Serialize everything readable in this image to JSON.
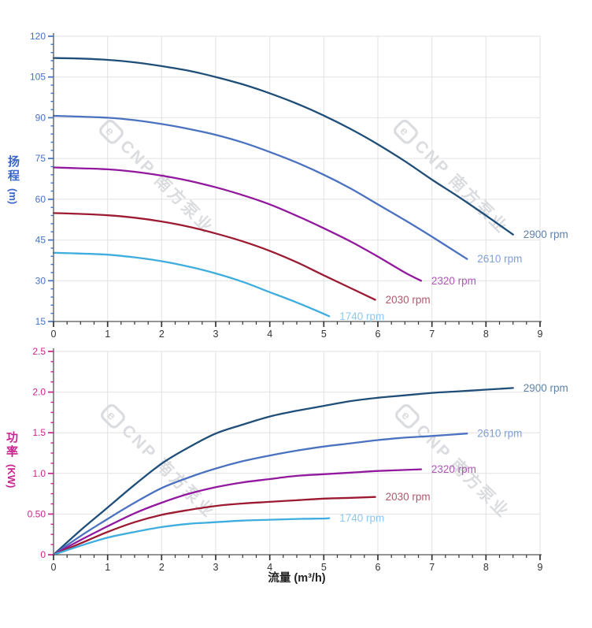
{
  "watermark": {
    "logo": "cnp-logo",
    "logo_letter": "e",
    "text": "CNP 南方泵业",
    "color": "#d7d9dc"
  },
  "x_text_color": "#333333",
  "chart_data": [
    {
      "type": "line",
      "id": "head",
      "title": "",
      "ylabel": "扬程",
      "ylabel_unit": "(m)",
      "xlabel": "",
      "xlim": [
        0,
        9
      ],
      "ylim": [
        15,
        120
      ],
      "x_major": 1,
      "x_minor": 0.25,
      "y_major": 15,
      "y_minor": 3,
      "grid": true,
      "axis_color": "#4472c4",
      "title_color": "#3a66cc",
      "x_tick_labels": [
        {
          "v": 0,
          "label": "0"
        },
        {
          "v": 1,
          "label": "1"
        },
        {
          "v": 2,
          "label": "2"
        },
        {
          "v": 3,
          "label": "3"
        },
        {
          "v": 4,
          "label": "4"
        },
        {
          "v": 5,
          "label": "5"
        },
        {
          "v": 6,
          "label": "6"
        },
        {
          "v": 7,
          "label": "7"
        },
        {
          "v": 8,
          "label": "8"
        },
        {
          "v": 9,
          "label": "9"
        }
      ],
      "y_tick_labels": [
        {
          "v": 15,
          "label": "15"
        },
        {
          "v": 30,
          "label": "30"
        },
        {
          "v": 45,
          "label": "45"
        },
        {
          "v": 60,
          "label": "60"
        },
        {
          "v": 75,
          "label": "75"
        },
        {
          "v": 90,
          "label": "90"
        },
        {
          "v": 105,
          "label": "105"
        },
        {
          "v": 120,
          "label": "120"
        }
      ],
      "series": [
        {
          "name": "2900 rpm",
          "color": "#1f4e79",
          "label_color": "#5f82a8",
          "points": [
            [
              0,
              112
            ],
            [
              0.5,
              111.8
            ],
            [
              1,
              111.3
            ],
            [
              1.5,
              110.4
            ],
            [
              2,
              109
            ],
            [
              2.5,
              107.3
            ],
            [
              3,
              105
            ],
            [
              3.5,
              102.3
            ],
            [
              4,
              99
            ],
            [
              4.5,
              95.2
            ],
            [
              5,
              90.8
            ],
            [
              5.5,
              85.8
            ],
            [
              6,
              80.2
            ],
            [
              6.5,
              74
            ],
            [
              7,
              67.2
            ],
            [
              7.5,
              60.8
            ],
            [
              8,
              54
            ],
            [
              8.5,
              47
            ]
          ]
        },
        {
          "name": "2610 rpm",
          "color": "#4a72c0",
          "label_color": "#7f9fd9",
          "points": [
            [
              0,
              90.7
            ],
            [
              0.5,
              90.4
            ],
            [
              1,
              90
            ],
            [
              1.5,
              89.1
            ],
            [
              2,
              87.7
            ],
            [
              2.5,
              85.9
            ],
            [
              3,
              83.7
            ],
            [
              3.5,
              80.9
            ],
            [
              4,
              77.4
            ],
            [
              4.5,
              73.5
            ],
            [
              5,
              69
            ],
            [
              5.5,
              63.9
            ],
            [
              6,
              58.1
            ],
            [
              6.5,
              52.3
            ],
            [
              7,
              46.2
            ],
            [
              7.65,
              38
            ]
          ]
        },
        {
          "name": "2320 rpm",
          "color": "#92189e",
          "label_color": "#b055b8",
          "points": [
            [
              0,
              71.7
            ],
            [
              0.5,
              71.4
            ],
            [
              1,
              71
            ],
            [
              1.5,
              70.1
            ],
            [
              2,
              68.7
            ],
            [
              2.5,
              66.8
            ],
            [
              3,
              64.4
            ],
            [
              3.5,
              61.5
            ],
            [
              4,
              58.1
            ],
            [
              4.5,
              53.9
            ],
            [
              5,
              49.3
            ],
            [
              5.5,
              44.4
            ],
            [
              6,
              38.9
            ],
            [
              6.5,
              33
            ],
            [
              6.8,
              30
            ]
          ]
        },
        {
          "name": "2030 rpm",
          "color": "#9c1b33",
          "label_color": "#b05a6e",
          "points": [
            [
              0,
              54.9
            ],
            [
              0.5,
              54.6
            ],
            [
              1,
              54.1
            ],
            [
              1.5,
              53.2
            ],
            [
              2,
              51.8
            ],
            [
              2.5,
              49.9
            ],
            [
              3,
              47.4
            ],
            [
              3.5,
              44.5
            ],
            [
              4,
              41
            ],
            [
              4.5,
              36.8
            ],
            [
              5,
              32
            ],
            [
              5.95,
              23
            ]
          ]
        },
        {
          "name": "1740 rpm",
          "color": "#3fadde",
          "label_color": "#8fc7ec",
          "points": [
            [
              0,
              40.3
            ],
            [
              0.5,
              40
            ],
            [
              1,
              39.6
            ],
            [
              1.5,
              38.6
            ],
            [
              2,
              37.2
            ],
            [
              2.5,
              35.2
            ],
            [
              3,
              32.7
            ],
            [
              3.5,
              29.6
            ],
            [
              4,
              25.8
            ],
            [
              4.5,
              22
            ],
            [
              5,
              17.8
            ],
            [
              5.1,
              16.9
            ]
          ]
        }
      ]
    },
    {
      "type": "line",
      "id": "power",
      "title": "",
      "ylabel": "功率",
      "ylabel_unit": "(KW)",
      "xlabel": "流量 (m³/h)",
      "xlim": [
        0,
        9
      ],
      "ylim": [
        0,
        2.5
      ],
      "x_major": 1,
      "x_minor": 0.25,
      "y_major": 0.5,
      "y_minor": 0.125,
      "grid": true,
      "axis_color": "#c9248f",
      "title_color": "#c9248f",
      "x_tick_labels": [
        {
          "v": 0,
          "label": "0"
        },
        {
          "v": 1,
          "label": "1"
        },
        {
          "v": 2,
          "label": "2"
        },
        {
          "v": 3,
          "label": "3"
        },
        {
          "v": 4,
          "label": "4"
        },
        {
          "v": 5,
          "label": "5"
        },
        {
          "v": 6,
          "label": "6"
        },
        {
          "v": 7,
          "label": "7"
        },
        {
          "v": 8,
          "label": "8"
        },
        {
          "v": 9,
          "label": "9"
        }
      ],
      "y_tick_labels": [
        {
          "v": 0,
          "label": "0"
        },
        {
          "v": 0.5,
          "label": "0.50"
        },
        {
          "v": 1,
          "label": "1.0"
        },
        {
          "v": 1.5,
          "label": "1.5"
        },
        {
          "v": 2,
          "label": "2.0"
        },
        {
          "v": 2.5,
          "label": "2.5"
        }
      ],
      "series": [
        {
          "name": "2900 rpm",
          "color": "#1f4e79",
          "label_color": "#5f82a8",
          "points": [
            [
              0,
              0
            ],
            [
              0.5,
              0.3
            ],
            [
              1,
              0.58
            ],
            [
              1.5,
              0.86
            ],
            [
              2,
              1.12
            ],
            [
              2.5,
              1.32
            ],
            [
              3,
              1.49
            ],
            [
              3.5,
              1.6
            ],
            [
              4,
              1.7
            ],
            [
              4.5,
              1.77
            ],
            [
              5,
              1.83
            ],
            [
              5.5,
              1.89
            ],
            [
              6,
              1.93
            ],
            [
              6.5,
              1.96
            ],
            [
              7,
              1.99
            ],
            [
              7.5,
              2.01
            ],
            [
              8,
              2.03
            ],
            [
              8.5,
              2.05
            ]
          ]
        },
        {
          "name": "2610 rpm",
          "color": "#4a72c0",
          "label_color": "#7f9fd9",
          "points": [
            [
              0,
              0
            ],
            [
              0.5,
              0.23
            ],
            [
              1,
              0.44
            ],
            [
              1.5,
              0.64
            ],
            [
              2,
              0.82
            ],
            [
              2.5,
              0.95
            ],
            [
              3,
              1.06
            ],
            [
              3.5,
              1.15
            ],
            [
              4,
              1.22
            ],
            [
              4.5,
              1.28
            ],
            [
              5,
              1.33
            ],
            [
              5.5,
              1.37
            ],
            [
              6,
              1.41
            ],
            [
              6.5,
              1.44
            ],
            [
              7,
              1.46
            ],
            [
              7.65,
              1.49
            ]
          ]
        },
        {
          "name": "2320 rpm",
          "color": "#92189e",
          "label_color": "#b055b8",
          "points": [
            [
              0,
              0
            ],
            [
              0.5,
              0.18
            ],
            [
              1,
              0.35
            ],
            [
              1.5,
              0.51
            ],
            [
              2,
              0.64
            ],
            [
              2.5,
              0.75
            ],
            [
              3,
              0.83
            ],
            [
              3.5,
              0.89
            ],
            [
              4,
              0.93
            ],
            [
              4.5,
              0.97
            ],
            [
              5,
              0.99
            ],
            [
              5.5,
              1.01
            ],
            [
              6,
              1.03
            ],
            [
              6.8,
              1.05
            ]
          ]
        },
        {
          "name": "2030 rpm",
          "color": "#9c1b33",
          "label_color": "#b05a6e",
          "points": [
            [
              0,
              0
            ],
            [
              0.5,
              0.14
            ],
            [
              1,
              0.28
            ],
            [
              1.5,
              0.4
            ],
            [
              2,
              0.49
            ],
            [
              2.5,
              0.55
            ],
            [
              3,
              0.6
            ],
            [
              3.5,
              0.63
            ],
            [
              4,
              0.65
            ],
            [
              4.5,
              0.67
            ],
            [
              5,
              0.69
            ],
            [
              5.5,
              0.7
            ],
            [
              5.95,
              0.71
            ]
          ]
        },
        {
          "name": "1740 rpm",
          "color": "#3fadde",
          "label_color": "#8fc7ec",
          "points": [
            [
              0,
              0
            ],
            [
              0.5,
              0.11
            ],
            [
              1,
              0.21
            ],
            [
              1.5,
              0.28
            ],
            [
              2,
              0.34
            ],
            [
              2.5,
              0.38
            ],
            [
              3,
              0.4
            ],
            [
              3.5,
              0.42
            ],
            [
              4,
              0.43
            ],
            [
              4.5,
              0.44
            ],
            [
              5,
              0.445
            ],
            [
              5.1,
              0.45
            ]
          ]
        }
      ]
    }
  ]
}
